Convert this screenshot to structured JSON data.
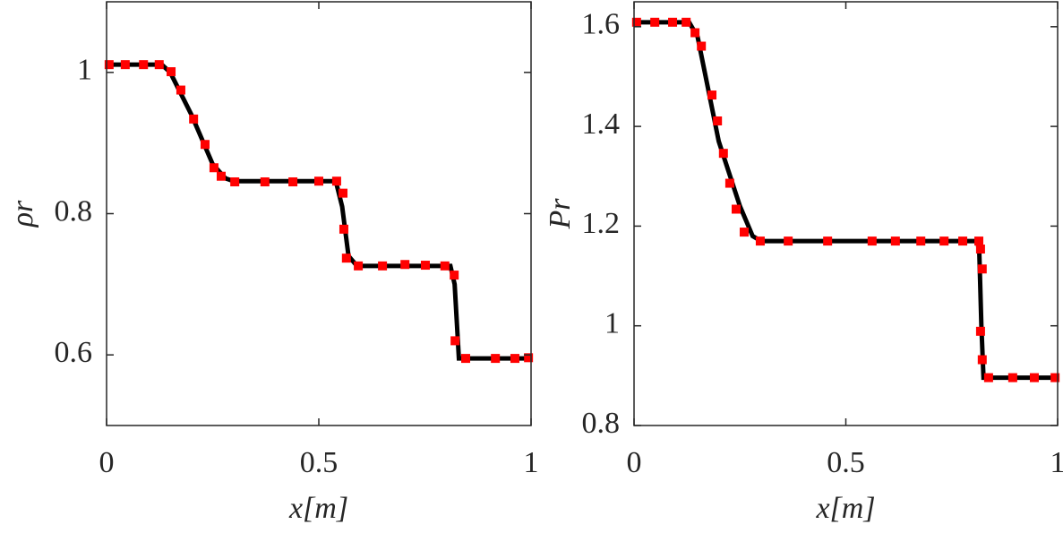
{
  "chart_data": [
    {
      "type": "line",
      "xlabel": "x[m]",
      "ylabel": "ρr",
      "xlim": [
        0,
        1
      ],
      "ylim": [
        0.5,
        1.1
      ],
      "xticks": [
        0,
        0.5,
        1
      ],
      "yticks": [
        0.6,
        0.8,
        1
      ],
      "series": [
        {
          "color": "#000000",
          "style": "line",
          "x": [
            0,
            0.13,
            0.15,
            0.2,
            0.25,
            0.28,
            0.3,
            0.54,
            0.555,
            0.57,
            0.59,
            0.81,
            0.82,
            0.83,
            1
          ],
          "values": [
            1.011,
            1.011,
            1.0,
            0.94,
            0.87,
            0.85,
            0.846,
            0.846,
            0.81,
            0.74,
            0.726,
            0.726,
            0.7,
            0.595,
            0.595
          ]
        },
        {
          "color": "#ff0000",
          "style": "markers",
          "x": [
            0.006,
            0.044,
            0.087,
            0.124,
            0.152,
            0.175,
            0.205,
            0.232,
            0.253,
            0.27,
            0.302,
            0.373,
            0.439,
            0.5,
            0.542,
            0.557,
            0.559,
            0.565,
            0.593,
            0.65,
            0.703,
            0.751,
            0.797,
            0.819,
            0.821,
            0.846,
            0.916,
            0.962,
            0.994
          ],
          "values": [
            1.011,
            1.011,
            1.011,
            1.011,
            1.001,
            0.975,
            0.934,
            0.898,
            0.865,
            0.853,
            0.845,
            0.845,
            0.845,
            0.846,
            0.846,
            0.829,
            0.778,
            0.737,
            0.726,
            0.726,
            0.728,
            0.727,
            0.726,
            0.713,
            0.62,
            0.595,
            0.595,
            0.595,
            0.596
          ]
        }
      ]
    },
    {
      "type": "line",
      "xlabel": "x[m]",
      "ylabel": "Pr",
      "xlim": [
        0,
        1
      ],
      "ylim": [
        0.8,
        1.65
      ],
      "xticks": [
        0,
        0.5,
        1
      ],
      "yticks": [
        0.8,
        1,
        1.2,
        1.4,
        1.6
      ],
      "series": [
        {
          "color": "#000000",
          "style": "line",
          "x": [
            0,
            0.13,
            0.15,
            0.2,
            0.25,
            0.28,
            0.3,
            0.81,
            0.815,
            0.82,
            0.825,
            1
          ],
          "values": [
            1.609,
            1.609,
            1.58,
            1.37,
            1.24,
            1.18,
            1.17,
            1.17,
            1.15,
            1.0,
            0.896,
            0.896
          ]
        },
        {
          "color": "#ff0000",
          "style": "markers",
          "x": [
            0.006,
            0.049,
            0.091,
            0.123,
            0.144,
            0.159,
            0.184,
            0.197,
            0.211,
            0.226,
            0.241,
            0.26,
            0.298,
            0.364,
            0.457,
            0.562,
            0.617,
            0.677,
            0.732,
            0.776,
            0.814,
            0.818,
            0.822,
            0.818,
            0.822,
            0.837,
            0.894,
            0.945,
            0.994
          ],
          "values": [
            1.609,
            1.609,
            1.609,
            1.609,
            1.588,
            1.561,
            1.463,
            1.411,
            1.346,
            1.286,
            1.234,
            1.188,
            1.17,
            1.17,
            1.17,
            1.17,
            1.17,
            1.17,
            1.17,
            1.17,
            1.17,
            1.154,
            1.114,
            0.989,
            0.932,
            0.896,
            0.896,
            0.896,
            0.896
          ]
        }
      ]
    }
  ]
}
